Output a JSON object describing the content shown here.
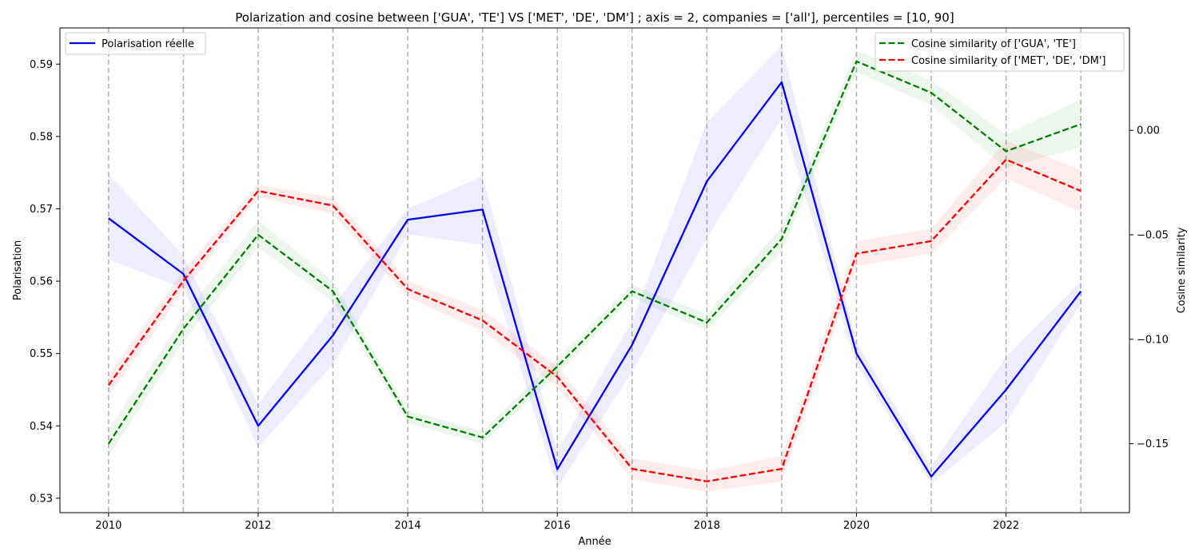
{
  "chart_data": {
    "type": "line",
    "title": "Polarization and cosine between ['GUA', 'TE'] VS ['MET', 'DE', 'DM'] ; axis = 2, companies = ['all'], percentiles = [10, 90]",
    "xlabel": "Année",
    "ylabel_left": "Polarisation",
    "ylabel_right": "Cosine similarity",
    "x": [
      2010,
      2011,
      2012,
      2013,
      2014,
      2015,
      2016,
      2017,
      2018,
      2019,
      2020,
      2021,
      2022,
      2023
    ],
    "xlim": [
      2009.35,
      2023.65
    ],
    "ylim_left": [
      0.528,
      0.595
    ],
    "ylim_right": [
      -0.183,
      0.049
    ],
    "x_ticks": [
      2010,
      2012,
      2014,
      2016,
      2018,
      2020,
      2022
    ],
    "y_ticks_left": [
      0.53,
      0.54,
      0.55,
      0.56,
      0.57,
      0.58,
      0.59
    ],
    "y_ticks_right": [
      -0.15,
      -0.1,
      -0.05,
      0.0
    ],
    "x_tick_labels": [
      "2010",
      "2012",
      "2014",
      "2016",
      "2018",
      "2020",
      "2022"
    ],
    "y_tick_labels_left": [
      "0.53",
      "0.54",
      "0.55",
      "0.56",
      "0.57",
      "0.58",
      "0.59"
    ],
    "y_tick_labels_right": [
      "−0.15",
      "−0.10",
      "−0.05",
      "0.00"
    ],
    "vertical_grid": "dashed at every year",
    "series": [
      {
        "name": "Polarisation réelle",
        "axis": "left",
        "color": "#0000ff",
        "style": "solid",
        "values": [
          0.5687,
          0.561,
          0.54,
          0.5525,
          0.5685,
          0.5699,
          0.534,
          0.5512,
          0.5738,
          0.5875,
          0.55,
          0.533,
          0.545,
          0.5586
        ],
        "lower": [
          0.563,
          0.559,
          0.537,
          0.5485,
          0.5665,
          0.565,
          0.5315,
          0.5475,
          0.566,
          0.5825,
          0.5485,
          0.532,
          0.5405,
          0.557
        ],
        "upper": [
          0.5748,
          0.5635,
          0.543,
          0.5565,
          0.57,
          0.5745,
          0.5365,
          0.5545,
          0.582,
          0.5925,
          0.5515,
          0.5345,
          0.5495,
          0.56
        ]
      },
      {
        "name": "Cosine similarity of ['GUA', 'TE']",
        "axis": "right",
        "color": "#008000",
        "style": "dashed",
        "values": [
          -0.15,
          -0.095,
          -0.05,
          -0.077,
          -0.137,
          -0.147,
          -0.113,
          -0.077,
          -0.092,
          -0.052,
          0.033,
          0.018,
          -0.01,
          0.003
        ],
        "lower": [
          -0.156,
          -0.101,
          -0.056,
          -0.082,
          -0.14,
          -0.15,
          -0.117,
          -0.08,
          -0.096,
          -0.058,
          0.028,
          0.012,
          -0.018,
          -0.008
        ],
        "upper": [
          -0.143,
          -0.089,
          -0.043,
          -0.072,
          -0.134,
          -0.144,
          -0.109,
          -0.074,
          -0.088,
          -0.046,
          0.038,
          0.024,
          -0.002,
          0.015
        ]
      },
      {
        "name": "Cosine similarity of ['MET', 'DE', 'DM']",
        "axis": "right",
        "color": "#ff0000",
        "style": "dashed",
        "values": [
          -0.122,
          -0.072,
          -0.029,
          -0.036,
          -0.076,
          -0.091,
          -0.118,
          -0.162,
          -0.168,
          -0.162,
          -0.059,
          -0.053,
          -0.014,
          -0.029
        ],
        "lower": [
          -0.127,
          -0.077,
          -0.032,
          -0.04,
          -0.08,
          -0.096,
          -0.123,
          -0.167,
          -0.173,
          -0.168,
          -0.065,
          -0.059,
          -0.023,
          -0.039
        ],
        "upper": [
          -0.117,
          -0.067,
          -0.026,
          -0.032,
          -0.072,
          -0.086,
          -0.113,
          -0.157,
          -0.163,
          -0.156,
          -0.053,
          -0.047,
          -0.005,
          -0.019
        ]
      }
    ],
    "legend_left": {
      "placement": "top-left",
      "entries": [
        "Polarisation réelle"
      ]
    },
    "legend_right": {
      "placement": "top-right",
      "entries": [
        "Cosine similarity of ['GUA', 'TE']",
        "Cosine similarity of ['MET', 'DE', 'DM']"
      ]
    }
  }
}
